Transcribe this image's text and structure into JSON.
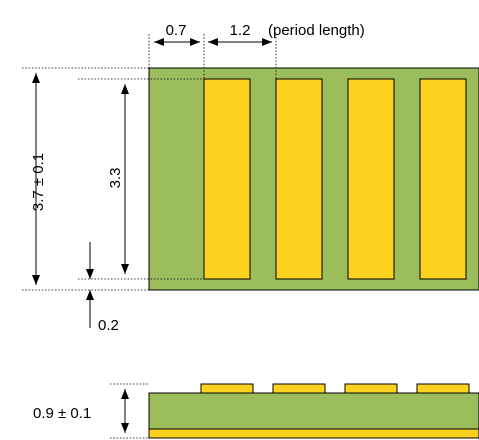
{
  "labels": {
    "pitch_offset": "0.7",
    "period": "1.2",
    "period_note": "(period length)",
    "total_height": "3.7 ± 0.1",
    "pad_height": "3.3",
    "bottom_margin": "0.2",
    "thickness": "0.9 ± 0.1"
  },
  "colors": {
    "substrate": "#9bbd5c",
    "pad": "#fdd21f",
    "line": "#000000",
    "background": "#ffffff"
  },
  "pads": [
    {
      "id": "pad-1"
    },
    {
      "id": "pad-2"
    },
    {
      "id": "pad-3"
    },
    {
      "id": "pad-4"
    }
  ]
}
